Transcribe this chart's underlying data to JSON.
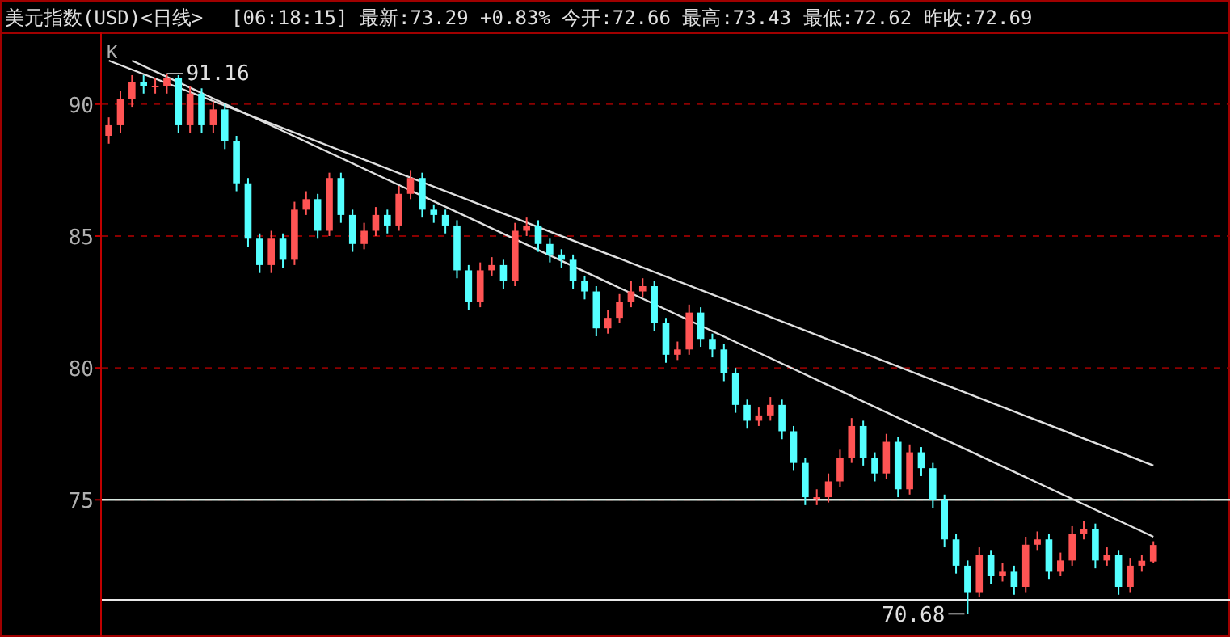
{
  "chart_data": {
    "type": "candlestick",
    "title": "美元指数(USD)<日线>",
    "subtitle": "[06:18:15] 最新:73.29 +0.83% 今开:72.66 最高:73.43 最低:72.62 昨收:72.69",
    "categories": [
      null,
      null,
      null,
      null,
      null,
      null,
      null,
      null,
      null,
      null,
      null,
      null,
      null,
      null,
      null,
      null,
      null,
      null,
      null,
      null,
      null,
      null,
      null,
      null,
      null,
      null,
      null,
      null,
      null,
      null,
      null,
      null,
      null,
      null,
      null,
      null,
      null,
      null,
      null,
      null,
      null,
      null,
      null,
      null,
      null,
      null,
      null,
      null,
      null,
      null,
      null,
      null,
      null,
      null,
      null,
      null,
      null,
      null,
      null,
      null,
      null,
      null,
      null,
      null,
      null,
      null,
      null,
      null,
      null,
      null,
      null,
      null,
      null,
      null,
      null,
      null,
      null,
      null,
      null,
      null,
      null,
      null,
      null,
      null,
      null,
      null,
      null,
      null,
      null,
      null,
      null
    ],
    "ohlc": [
      [
        88.8,
        89.5,
        88.5,
        89.2
      ],
      [
        89.2,
        90.5,
        88.9,
        90.2
      ],
      [
        90.2,
        91.1,
        89.9,
        90.85
      ],
      [
        90.85,
        91.1,
        90.4,
        90.7
      ],
      [
        90.7,
        91.0,
        90.4,
        90.7
      ],
      [
        90.7,
        91.16,
        90.4,
        91.0
      ],
      [
        91.0,
        91.1,
        88.9,
        89.2
      ],
      [
        89.2,
        90.7,
        88.9,
        90.4
      ],
      [
        90.4,
        90.6,
        88.9,
        89.2
      ],
      [
        89.2,
        90.1,
        88.9,
        89.8
      ],
      [
        89.8,
        90.0,
        88.3,
        88.6
      ],
      [
        88.6,
        88.8,
        86.7,
        87.0
      ],
      [
        87.0,
        87.2,
        84.6,
        84.9
      ],
      [
        84.9,
        85.1,
        83.6,
        83.9
      ],
      [
        83.9,
        85.2,
        83.6,
        84.9
      ],
      [
        84.9,
        85.1,
        83.8,
        84.1
      ],
      [
        84.1,
        86.3,
        83.9,
        86.0
      ],
      [
        86.0,
        86.7,
        85.8,
        86.4
      ],
      [
        86.4,
        86.6,
        84.9,
        85.2
      ],
      [
        85.2,
        87.4,
        85.0,
        87.2
      ],
      [
        87.2,
        87.4,
        85.5,
        85.8
      ],
      [
        85.8,
        86.0,
        84.4,
        84.7
      ],
      [
        84.7,
        85.5,
        84.5,
        85.2
      ],
      [
        85.2,
        86.1,
        85.0,
        85.8
      ],
      [
        85.8,
        86.0,
        85.1,
        85.4
      ],
      [
        85.4,
        86.9,
        85.2,
        86.6
      ],
      [
        86.6,
        87.5,
        86.4,
        87.2
      ],
      [
        87.2,
        87.4,
        85.7,
        86.0
      ],
      [
        86.0,
        86.2,
        85.5,
        85.8
      ],
      [
        85.8,
        86.0,
        85.1,
        85.4
      ],
      [
        85.4,
        85.6,
        83.4,
        83.7
      ],
      [
        83.7,
        83.9,
        82.2,
        82.5
      ],
      [
        82.5,
        84.0,
        82.3,
        83.7
      ],
      [
        83.7,
        84.2,
        83.5,
        83.9
      ],
      [
        83.9,
        84.1,
        83.0,
        83.3
      ],
      [
        83.3,
        85.5,
        83.1,
        85.2
      ],
      [
        85.2,
        85.7,
        85.0,
        85.4
      ],
      [
        85.4,
        85.6,
        84.4,
        84.7
      ],
      [
        84.7,
        84.9,
        84.0,
        84.3
      ],
      [
        84.3,
        84.5,
        83.8,
        84.1
      ],
      [
        84.1,
        84.3,
        83.0,
        83.3
      ],
      [
        83.3,
        83.5,
        82.6,
        82.9
      ],
      [
        82.9,
        83.1,
        81.2,
        81.5
      ],
      [
        81.5,
        82.2,
        81.3,
        81.9
      ],
      [
        81.9,
        82.8,
        81.7,
        82.5
      ],
      [
        82.5,
        83.3,
        82.3,
        82.9
      ],
      [
        82.9,
        83.4,
        82.7,
        83.1
      ],
      [
        83.1,
        83.3,
        81.4,
        81.7
      ],
      [
        81.7,
        81.9,
        80.2,
        80.5
      ],
      [
        80.5,
        81.0,
        80.3,
        80.7
      ],
      [
        80.7,
        82.4,
        80.5,
        82.1
      ],
      [
        82.1,
        82.3,
        80.8,
        81.1
      ],
      [
        81.1,
        81.3,
        80.4,
        80.7
      ],
      [
        80.7,
        80.9,
        79.5,
        79.8
      ],
      [
        79.8,
        80.0,
        78.3,
        78.6
      ],
      [
        78.6,
        78.8,
        77.7,
        78.0
      ],
      [
        78.0,
        78.5,
        77.8,
        78.2
      ],
      [
        78.2,
        78.9,
        78.0,
        78.6
      ],
      [
        78.6,
        78.8,
        77.3,
        77.6
      ],
      [
        77.6,
        77.8,
        76.1,
        76.4
      ],
      [
        76.4,
        76.6,
        74.8,
        75.1
      ],
      [
        75.1,
        75.4,
        74.8,
        75.1
      ],
      [
        75.1,
        76.0,
        74.9,
        75.7
      ],
      [
        75.7,
        76.9,
        75.5,
        76.6
      ],
      [
        76.6,
        78.1,
        76.4,
        77.8
      ],
      [
        77.8,
        78.0,
        76.3,
        76.6
      ],
      [
        76.6,
        76.8,
        75.7,
        76.0
      ],
      [
        76.0,
        77.5,
        75.8,
        77.2
      ],
      [
        77.2,
        77.4,
        75.1,
        75.4
      ],
      [
        75.4,
        77.1,
        75.2,
        76.8
      ],
      [
        76.8,
        77.0,
        75.9,
        76.2
      ],
      [
        76.2,
        76.4,
        74.7,
        75.0
      ],
      [
        75.0,
        75.2,
        73.2,
        73.5
      ],
      [
        73.5,
        73.7,
        72.2,
        72.5
      ],
      [
        72.5,
        72.7,
        70.68,
        71.5
      ],
      [
        71.5,
        73.2,
        71.3,
        72.9
      ],
      [
        72.9,
        73.1,
        71.8,
        72.1
      ],
      [
        72.1,
        72.6,
        71.9,
        72.3
      ],
      [
        72.3,
        72.5,
        71.4,
        71.7
      ],
      [
        71.7,
        73.6,
        71.5,
        73.3
      ],
      [
        73.3,
        73.8,
        73.1,
        73.5
      ],
      [
        73.5,
        73.7,
        72.0,
        72.3
      ],
      [
        72.3,
        73.0,
        72.1,
        72.7
      ],
      [
        72.7,
        74.0,
        72.5,
        73.7
      ],
      [
        73.7,
        74.2,
        73.5,
        73.9
      ],
      [
        73.9,
        74.1,
        72.4,
        72.7
      ],
      [
        72.7,
        73.2,
        72.5,
        72.9
      ],
      [
        72.9,
        73.1,
        71.4,
        71.7
      ],
      [
        71.7,
        72.8,
        71.5,
        72.5
      ],
      [
        72.5,
        72.9,
        72.3,
        72.69
      ],
      [
        72.66,
        73.43,
        72.62,
        73.29
      ]
    ],
    "colors": [
      "#ff5454",
      "#ff5454",
      "#ff5454",
      "#54ffff",
      "#ff5454",
      "#ff5454",
      "#54ffff",
      "#ff5454",
      "#54ffff",
      "#ff5454",
      "#54ffff",
      "#54ffff",
      "#54ffff",
      "#54ffff",
      "#ff5454",
      "#54ffff",
      "#ff5454",
      "#ff5454",
      "#54ffff",
      "#ff5454",
      "#54ffff",
      "#54ffff",
      "#ff5454",
      "#ff5454",
      "#54ffff",
      "#ff5454",
      "#ff5454",
      "#54ffff",
      "#54ffff",
      "#54ffff",
      "#54ffff",
      "#54ffff",
      "#ff5454",
      "#ff5454",
      "#54ffff",
      "#ff5454",
      "#ff5454",
      "#54ffff",
      "#54ffff",
      "#54ffff",
      "#54ffff",
      "#54ffff",
      "#54ffff",
      "#ff5454",
      "#ff5454",
      "#ff5454",
      "#ff5454",
      "#54ffff",
      "#54ffff",
      "#ff5454",
      "#ff5454",
      "#54ffff",
      "#54ffff",
      "#54ffff",
      "#54ffff",
      "#54ffff",
      "#ff5454",
      "#ff5454",
      "#54ffff",
      "#54ffff",
      "#54ffff",
      "#ff5454",
      "#ff5454",
      "#ff5454",
      "#ff5454",
      "#54ffff",
      "#54ffff",
      "#ff5454",
      "#54ffff",
      "#ff5454",
      "#54ffff",
      "#54ffff",
      "#54ffff",
      "#54ffff",
      "#54ffff",
      "#ff5454",
      "#54ffff",
      "#ff5454",
      "#54ffff",
      "#ff5454",
      "#ff5454",
      "#54ffff",
      "#ff5454",
      "#ff5454",
      "#ff5454",
      "#54ffff",
      "#ff5454",
      "#54ffff",
      "#ff5454",
      "#ff5454",
      "#ff5454"
    ],
    "series": [
      {
        "type": "line",
        "values": [
          91.65,
          null,
          null,
          null,
          null,
          null,
          null,
          null,
          null,
          null,
          null,
          null,
          null,
          null,
          null,
          null,
          null,
          null,
          null,
          null,
          null,
          null,
          null,
          null,
          null,
          null,
          null,
          null,
          null,
          null,
          null,
          null,
          null,
          null,
          null,
          null,
          null,
          null,
          null,
          null,
          null,
          null,
          null,
          null,
          null,
          null,
          null,
          null,
          null,
          null,
          null,
          null,
          null,
          null,
          null,
          null,
          null,
          null,
          null,
          null,
          null,
          null,
          null,
          null,
          null,
          null,
          null,
          null,
          null,
          null,
          null,
          null,
          null,
          null,
          null,
          null,
          null,
          null,
          null,
          null,
          null,
          null,
          null,
          null,
          null,
          null,
          null,
          null,
          null,
          null,
          76.3
        ],
        "color": "#e0e0e0"
      },
      {
        "type": "line",
        "values": [
          null,
          null,
          91.65,
          null,
          null,
          null,
          null,
          null,
          null,
          null,
          null,
          null,
          null,
          null,
          null,
          null,
          null,
          null,
          null,
          null,
          null,
          null,
          null,
          null,
          null,
          null,
          null,
          null,
          null,
          null,
          null,
          null,
          null,
          null,
          null,
          null,
          null,
          null,
          null,
          null,
          null,
          null,
          null,
          null,
          null,
          null,
          null,
          null,
          null,
          null,
          null,
          null,
          null,
          null,
          null,
          null,
          null,
          null,
          null,
          null,
          null,
          null,
          null,
          null,
          null,
          null,
          null,
          null,
          null,
          null,
          null,
          null,
          null,
          null,
          null,
          null,
          null,
          null,
          null,
          null,
          null,
          null,
          null,
          null,
          null,
          null,
          null,
          null,
          null,
          null,
          73.6
        ],
        "color": "#e0e0e0"
      }
    ],
    "ref_lines": [
      {
        "axis": "y",
        "value": 75,
        "color": "#d8e8e0"
      },
      {
        "axis": "y",
        "value": 71.2,
        "color": "#e8e8e8"
      }
    ],
    "ylim": [
      69.8,
      92.6
    ],
    "yticks": [
      75,
      80,
      85,
      90
    ],
    "grid": "y",
    "annotations": [
      "K",
      "91.16",
      "70.68"
    ]
  }
}
